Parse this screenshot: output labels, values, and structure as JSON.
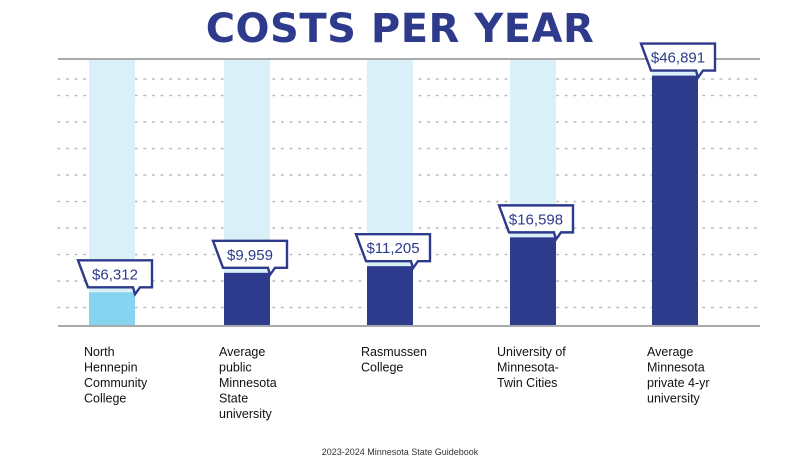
{
  "title": "COSTS PER YEAR",
  "source": "2023-2024 Minnesota State Guidebook",
  "colors": {
    "title": "#2e3a8c",
    "bar": "#2e3a8c",
    "bar_highlight": "#87d4f0",
    "bar_track": "#daf0f9",
    "grid": "#bbbbbb",
    "axis": "#aaaaaa"
  },
  "chart_data": {
    "type": "bar",
    "title": "COSTS PER YEAR",
    "xlabel": "",
    "ylabel": "",
    "ylim": [
      0,
      50000
    ],
    "grid": true,
    "categories": [
      "North Hennepin Community College",
      "Average public Minnesota State university",
      "Rasmussen College",
      "University of Minnesota- Twin Cities",
      "Average Minnesota private 4-yr university"
    ],
    "category_lines": [
      [
        "North",
        "Hennepin",
        "Community",
        "College"
      ],
      [
        "Average",
        "public",
        "Minnesota",
        "State",
        "university"
      ],
      [
        "Rasmussen",
        "College"
      ],
      [
        "University of",
        "Minnesota-",
        "Twin Cities"
      ],
      [
        "Average",
        "Minnesota",
        "private 4-yr",
        "university"
      ]
    ],
    "values": [
      6312,
      9959,
      11205,
      16598,
      46891
    ],
    "value_labels": [
      "$6,312",
      "$9,959",
      "$11,205",
      "$16,598",
      "$46,891"
    ],
    "highlight_index": 0
  }
}
